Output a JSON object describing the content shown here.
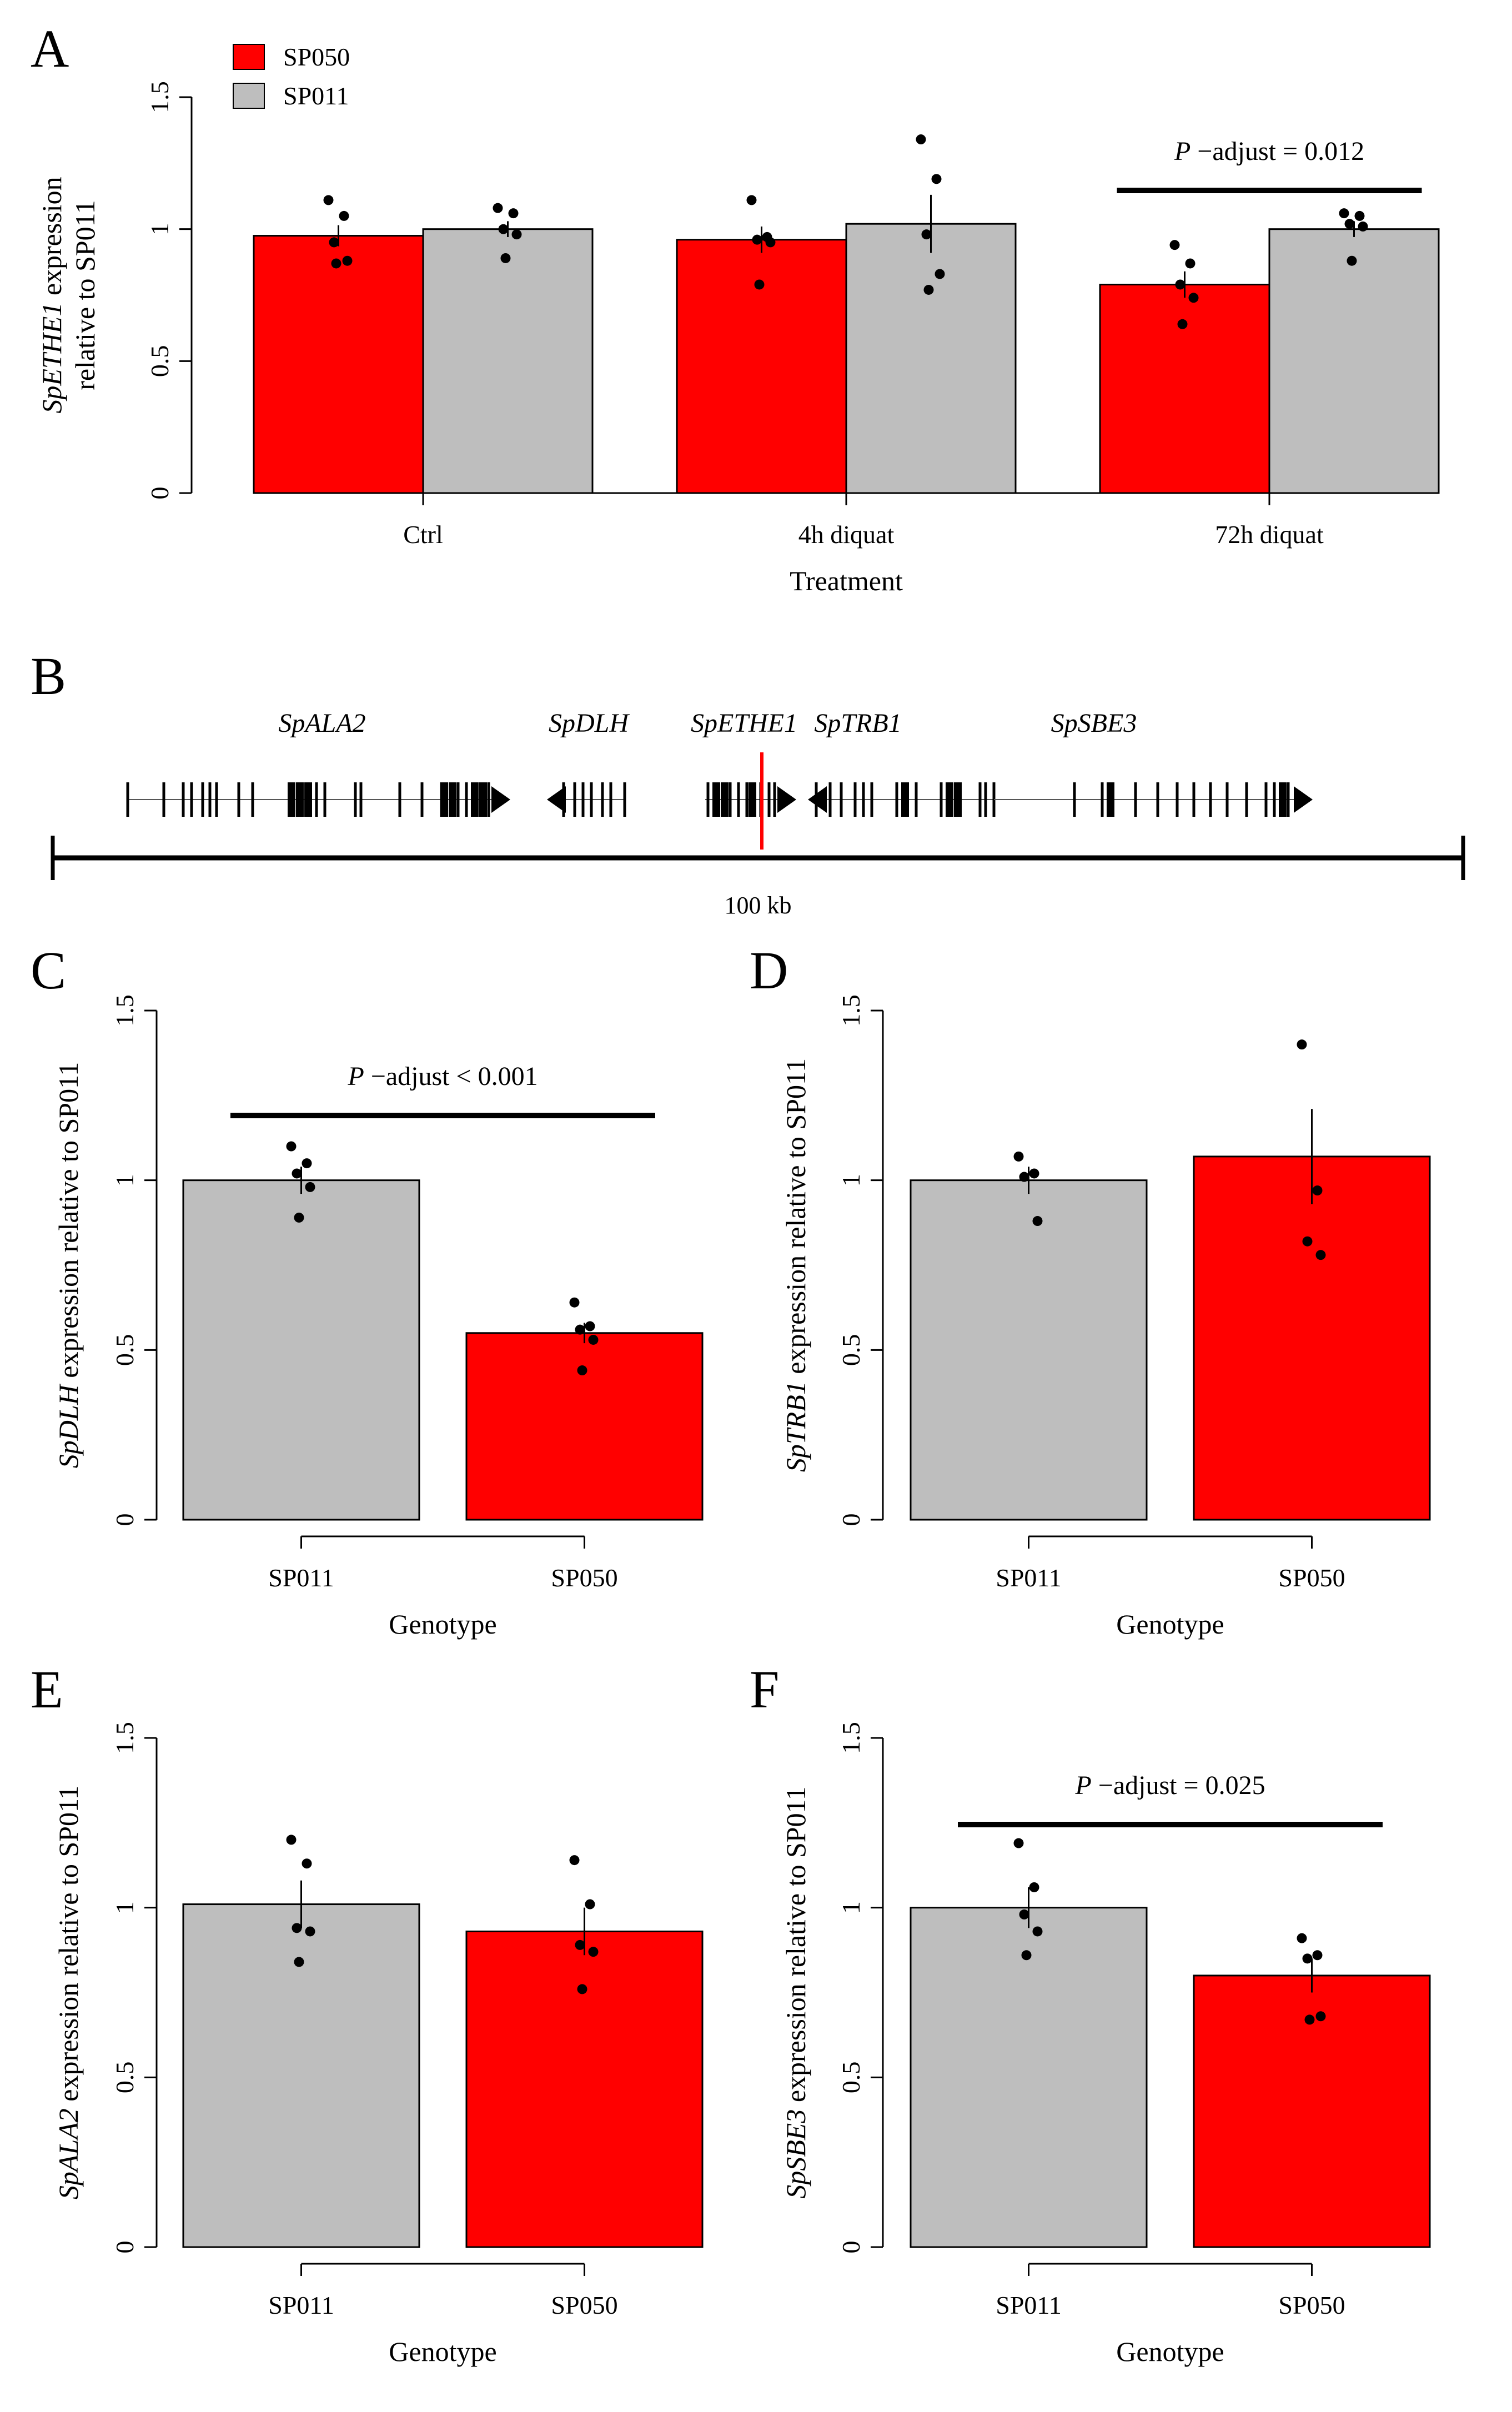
{
  "colors": {
    "sp050": "#ff0000",
    "sp011": "#bebebe",
    "marker": "#ff0000",
    "ink": "#000000"
  },
  "legend": {
    "items": [
      {
        "label": "SP050",
        "color": "#ff0000"
      },
      {
        "label": "SP011",
        "color": "#bebebe"
      }
    ]
  },
  "chart_data": [
    {
      "panel": "A",
      "type": "bar",
      "ylabel_italic": "SpETHE1",
      "ylabel_rest": " expression",
      "ylabel_line2": "relative to SP011",
      "xlabel": "Treatment",
      "categories": [
        "Ctrl",
        "4h diquat",
        "72h diquat"
      ],
      "ylim": [
        0,
        1.5
      ],
      "yticks": [
        "0",
        "0.5",
        "1",
        "1.5"
      ],
      "yticks_values": [
        0,
        0.5,
        1,
        1.5
      ],
      "series": [
        {
          "name": "SP050",
          "color": "#ff0000",
          "values": [
            0.975,
            0.96,
            0.79
          ],
          "se": [
            0.04,
            0.05,
            0.05
          ],
          "points": [
            [
              1.11,
              1.05,
              0.95,
              0.88,
              0.87
            ],
            [
              1.11,
              0.97,
              0.96,
              0.95,
              0.79
            ],
            [
              0.94,
              0.87,
              0.79,
              0.74,
              0.64
            ]
          ]
        },
        {
          "name": "SP011",
          "color": "#bebebe",
          "values": [
            1.0,
            1.02,
            1.0
          ],
          "se": [
            0.03,
            0.11,
            0.03
          ],
          "points": [
            [
              1.08,
              1.06,
              1.0,
              0.98,
              0.89
            ],
            [
              1.34,
              1.19,
              0.98,
              0.83,
              0.77
            ],
            [
              1.06,
              1.05,
              1.02,
              1.01,
              0.88
            ]
          ]
        }
      ],
      "annotation": {
        "italic": "P",
        "rest": " −adjust = 0.012",
        "group": 2
      }
    },
    {
      "panel": "C",
      "type": "bar",
      "ylabel_italic": "SpDLH",
      "ylabel_rest": " expression relative to SP011",
      "xlabel": "Genotype",
      "categories": [
        "SP011",
        "SP050"
      ],
      "ylim": [
        0,
        1.5
      ],
      "yticks": [
        "0",
        "0.5",
        "1",
        "1.5"
      ],
      "yticks_values": [
        0,
        0.5,
        1,
        1.5
      ],
      "values": [
        1.0,
        0.55
      ],
      "bar_colors": [
        "#bebebe",
        "#ff0000"
      ],
      "se": [
        0.04,
        0.03
      ],
      "points": [
        [
          1.1,
          1.05,
          1.02,
          0.98,
          0.89
        ],
        [
          0.64,
          0.57,
          0.56,
          0.53,
          0.44
        ]
      ],
      "annotation": {
        "italic": "P",
        "rest": " −adjust < 0.001"
      }
    },
    {
      "panel": "D",
      "type": "bar",
      "ylabel_italic": "SpTRB1",
      "ylabel_rest": " expression relative to SP011",
      "xlabel": "Genotype",
      "categories": [
        "SP011",
        "SP050"
      ],
      "ylim": [
        0,
        1.5
      ],
      "yticks": [
        "0",
        "0.5",
        "1",
        "1.5"
      ],
      "yticks_values": [
        0,
        0.5,
        1,
        1.5
      ],
      "values": [
        1.0,
        1.07
      ],
      "bar_colors": [
        "#bebebe",
        "#ff0000"
      ],
      "se": [
        0.04,
        0.14
      ],
      "points": [
        [
          1.07,
          1.02,
          1.01,
          0.88
        ],
        [
          1.4,
          0.97,
          0.82,
          0.78
        ]
      ]
    },
    {
      "panel": "E",
      "type": "bar",
      "ylabel_italic": "SpALA2",
      "ylabel_rest": " expression relative to SP011",
      "xlabel": "Genotype",
      "categories": [
        "SP011",
        "SP050"
      ],
      "ylim": [
        0,
        1.5
      ],
      "yticks": [
        "0",
        "0.5",
        "1",
        "1.5"
      ],
      "yticks_values": [
        0,
        0.5,
        1,
        1.5
      ],
      "values": [
        1.01,
        0.93
      ],
      "bar_colors": [
        "#bebebe",
        "#ff0000"
      ],
      "se": [
        0.07,
        0.07
      ],
      "points": [
        [
          1.2,
          1.13,
          0.94,
          0.93,
          0.84
        ],
        [
          1.14,
          1.01,
          0.89,
          0.87,
          0.76
        ]
      ]
    },
    {
      "panel": "F",
      "type": "bar",
      "ylabel_italic": "SpSBE3",
      "ylabel_rest": " expression relative to SP011",
      "xlabel": "Genotype",
      "categories": [
        "SP011",
        "SP050"
      ],
      "ylim": [
        0,
        1.5
      ],
      "yticks": [
        "0",
        "0.5",
        "1",
        "1.5"
      ],
      "yticks_values": [
        0,
        0.5,
        1,
        1.5
      ],
      "values": [
        1.0,
        0.8
      ],
      "bar_colors": [
        "#bebebe",
        "#ff0000"
      ],
      "se": [
        0.06,
        0.05
      ],
      "points": [
        [
          1.19,
          1.06,
          0.98,
          0.93,
          0.86
        ],
        [
          0.91,
          0.86,
          0.85,
          0.68,
          0.67
        ]
      ],
      "annotation": {
        "italic": "P",
        "rest": " −adjust = 0.025"
      }
    }
  ],
  "gene_map": {
    "panel": "B",
    "scale_label": "100 kb",
    "genes": [
      {
        "name": "SpALA2",
        "direction": "forward"
      },
      {
        "name": "SpDLH",
        "direction": "reverse"
      },
      {
        "name": "SpETHE1",
        "direction": "forward"
      },
      {
        "name": "SpTRB1",
        "direction": "reverse"
      },
      {
        "name": "SpSBE3",
        "direction": "forward"
      }
    ]
  }
}
